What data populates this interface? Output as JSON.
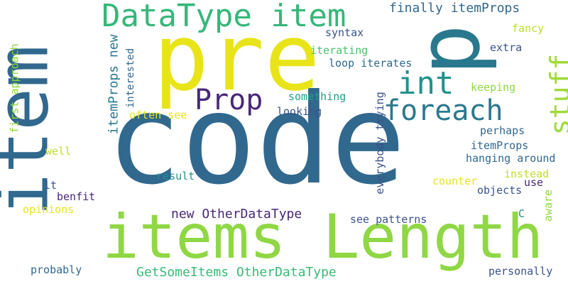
{
  "words": [
    {
      "text": "code",
      "color": "#31688e"
    },
    {
      "text": "items Length",
      "color": "#8fd744"
    },
    {
      "text": "pre",
      "color": "#e8e419"
    },
    {
      "text": "item",
      "color": "#31688e"
    },
    {
      "text": "p",
      "color": "#2a788e"
    },
    {
      "text": "DataType item",
      "color": "#35b779"
    },
    {
      "text": "foreach",
      "color": "#2a788e"
    },
    {
      "text": "int",
      "color": "#21918c"
    },
    {
      "text": "Prop",
      "color": "#482878"
    },
    {
      "text": "stuff",
      "color": "#a0da39"
    },
    {
      "text": "GetSomeItems OtherDataType",
      "color": "#3aba76"
    },
    {
      "text": "new OtherDataType",
      "color": "#482878"
    },
    {
      "text": "finally itemProps",
      "color": "#31688e"
    },
    {
      "text": "itemProps new",
      "color": "#2a788e"
    },
    {
      "text": "syntax",
      "color": "#3b528b"
    },
    {
      "text": "fancy",
      "color": "#bddf26"
    },
    {
      "text": "extra",
      "color": "#3b528b"
    },
    {
      "text": "iterating",
      "color": "#4ac16d"
    },
    {
      "text": "loop iterates",
      "color": "#31688e"
    },
    {
      "text": "interested",
      "color": "#31688e"
    },
    {
      "text": "first approach",
      "color": "#8fd744"
    },
    {
      "text": "keeping",
      "color": "#8fd744"
    },
    {
      "text": "something",
      "color": "#1fa187"
    },
    {
      "text": "looking",
      "color": "#3b528b"
    },
    {
      "text": "often see",
      "color": "#e8e419"
    },
    {
      "text": "everybody trying",
      "color": "#3b528b"
    },
    {
      "text": "perhaps",
      "color": "#31688e"
    },
    {
      "text": "itemProps",
      "color": "#31688e"
    },
    {
      "text": "hanging around",
      "color": "#31688e"
    },
    {
      "text": "well",
      "color": "#bddf26"
    },
    {
      "text": "instead",
      "color": "#bddf26"
    },
    {
      "text": "result",
      "color": "#21918c"
    },
    {
      "text": "counter",
      "color": "#e8e419"
    },
    {
      "text": "lt",
      "color": "#3b528b"
    },
    {
      "text": "benfit",
      "color": "#482878"
    },
    {
      "text": "use",
      "color": "#482878"
    },
    {
      "text": "objects",
      "color": "#3b528b"
    },
    {
      "text": "opinions",
      "color": "#e8e419"
    },
    {
      "text": "aware",
      "color": "#8fd744"
    },
    {
      "text": "see patterns",
      "color": "#3b528b"
    },
    {
      "text": "C",
      "color": "#21918c"
    },
    {
      "text": "probably",
      "color": "#31688e"
    },
    {
      "text": "personally",
      "color": "#3b528b"
    }
  ]
}
